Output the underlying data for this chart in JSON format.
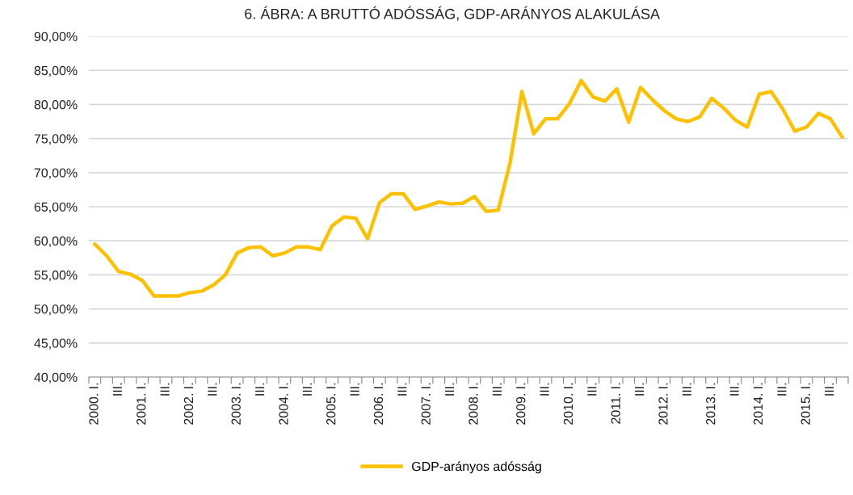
{
  "chart_data": {
    "type": "line",
    "title": "6. ÁBRA: A BRUTTÓ ADÓSSÁG, GDP-ARÁNYOS ALAKULÁSA",
    "categories": [
      "2000. I.",
      null,
      "III.",
      null,
      "2001. I.",
      null,
      "III.",
      null,
      "2002. I.",
      null,
      "III.",
      null,
      "2003. I.",
      null,
      "III.",
      null,
      "2004. I.",
      null,
      "III.",
      null,
      "2005. I.",
      null,
      "III.",
      null,
      "2006. I.",
      null,
      "III.",
      null,
      "2007. I.",
      null,
      "III.",
      null,
      "2008. I.",
      null,
      "III.",
      null,
      "2009. I.",
      null,
      "III.",
      null,
      "2010. I.",
      null,
      "III.",
      null,
      "2011. I.",
      null,
      "III.",
      null,
      "2012. I.",
      null,
      "III.",
      null,
      "2013. I.",
      null,
      "III.",
      null,
      "2014. I.",
      null,
      "III.",
      null,
      "2015. I.",
      null,
      "III.",
      null
    ],
    "series": [
      {
        "name": "GDP-arányos adósság",
        "color": "#ffc000",
        "values": [
          59.5,
          57.8,
          55.5,
          55.1,
          54.2,
          51.9,
          51.9,
          51.9,
          52.4,
          52.6,
          53.5,
          55.0,
          58.2,
          59.0,
          59.1,
          57.8,
          58.2,
          59.1,
          59.1,
          58.7,
          62.2,
          63.5,
          63.3,
          60.3,
          65.6,
          66.9,
          66.9,
          64.6,
          65.1,
          65.7,
          65.4,
          65.5,
          66.5,
          64.3,
          64.5,
          71.4,
          81.9,
          75.7,
          77.9,
          77.9,
          80.1,
          83.5,
          81.1,
          80.5,
          82.3,
          77.4,
          82.5,
          80.7,
          79.1,
          77.9,
          77.5,
          78.2,
          80.9,
          79.5,
          77.7,
          76.7,
          81.5,
          81.9,
          79.3,
          76.1,
          76.7,
          78.7,
          77.9,
          75.2
        ]
      }
    ],
    "ylim": [
      40,
      90
    ],
    "yticks": [
      {
        "value": 40,
        "label": "40,00%"
      },
      {
        "value": 45,
        "label": "45,00%"
      },
      {
        "value": 50,
        "label": "50,00%"
      },
      {
        "value": 55,
        "label": "55,00%"
      },
      {
        "value": 60,
        "label": "60,00%"
      },
      {
        "value": 65,
        "label": "65,00%"
      },
      {
        "value": 70,
        "label": "70,00%"
      },
      {
        "value": 75,
        "label": "75,00%"
      },
      {
        "value": 80,
        "label": "80,00%"
      },
      {
        "value": 85,
        "label": "85,00%"
      },
      {
        "value": 90,
        "label": "90,00%"
      }
    ],
    "grid": "y",
    "legend": "bottom",
    "marker": "none",
    "line_style": "solid"
  }
}
